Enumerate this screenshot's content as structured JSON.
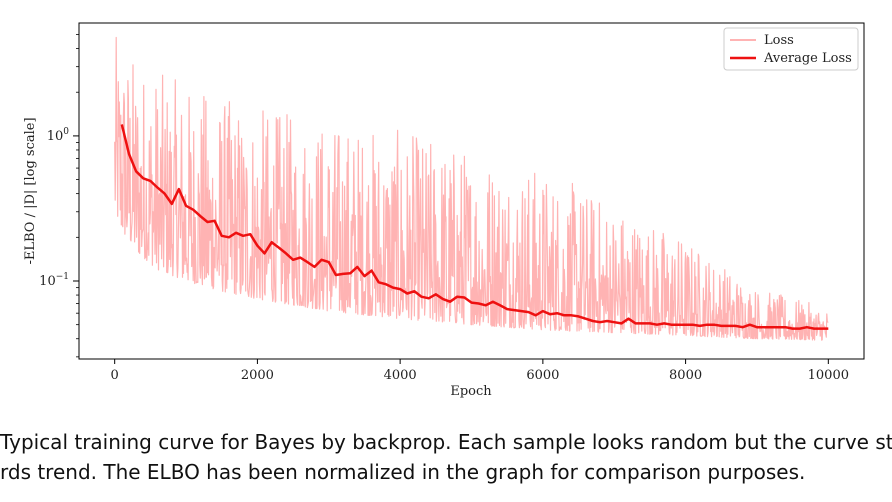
{
  "chart_data": {
    "type": "line",
    "title": "",
    "xlabel": "Epoch",
    "ylabel": "-ELBO / |D| [log scale]",
    "x_ticks": [
      0,
      2000,
      4000,
      6000,
      8000,
      10000
    ],
    "x_tick_labels": [
      "0",
      "2000",
      "4000",
      "6000",
      "8000",
      "10000"
    ],
    "y_scale": "log",
    "y_ticks": [
      0.1,
      1
    ],
    "y_tick_base": "10",
    "y_tick_exponents": [
      "−1",
      "0"
    ],
    "xlim": [
      -500,
      10500
    ],
    "ylim": [
      0.029,
      6.0
    ],
    "grid": false,
    "legend_position": "top-right",
    "colors": {
      "loss": "#ffb3b3",
      "average": "#ee1111"
    },
    "series": [
      {
        "name": "Loss",
        "kind": "noisy-band",
        "x_start": 0,
        "x_end": 10000,
        "envelope_x": [
          0,
          100,
          300,
          600,
          1000,
          1500,
          2000,
          3000,
          4000,
          5000,
          6000,
          7000,
          8000,
          9000,
          10000
        ],
        "envelope_low": [
          0.3,
          0.22,
          0.16,
          0.12,
          0.1,
          0.085,
          0.075,
          0.062,
          0.055,
          0.05,
          0.046,
          0.044,
          0.042,
          0.04,
          0.039
        ],
        "envelope_high": [
          5.0,
          4.5,
          3.5,
          2.8,
          2.3,
          1.9,
          1.6,
          1.3,
          1.1,
          0.85,
          0.6,
          0.35,
          0.2,
          0.09,
          0.065
        ]
      },
      {
        "name": "Average Loss",
        "x": [
          100,
          200,
          300,
          400,
          500,
          600,
          700,
          800,
          900,
          1000,
          1100,
          1200,
          1300,
          1400,
          1500,
          1600,
          1700,
          1800,
          1900,
          2000,
          2100,
          2200,
          2300,
          2400,
          2500,
          2600,
          2700,
          2800,
          2900,
          3000,
          3100,
          3200,
          3300,
          3400,
          3500,
          3600,
          3700,
          3800,
          3900,
          4000,
          4100,
          4200,
          4300,
          4400,
          4500,
          4600,
          4700,
          4800,
          4900,
          5000,
          5100,
          5200,
          5300,
          5400,
          5500,
          5600,
          5700,
          5800,
          5900,
          6000,
          6100,
          6200,
          6300,
          6400,
          6500,
          6600,
          6700,
          6800,
          6900,
          7000,
          7100,
          7200,
          7300,
          7400,
          7500,
          7600,
          7700,
          7800,
          7900,
          8000,
          8100,
          8200,
          8300,
          8400,
          8500,
          8600,
          8700,
          8800,
          8900,
          9000,
          9100,
          9200,
          9300,
          9400,
          9500,
          9600,
          9700,
          9800,
          9900,
          10000
        ],
        "values": [
          1.2,
          0.75,
          0.57,
          0.51,
          0.49,
          0.44,
          0.4,
          0.34,
          0.43,
          0.33,
          0.31,
          0.28,
          0.255,
          0.26,
          0.205,
          0.2,
          0.215,
          0.205,
          0.21,
          0.175,
          0.155,
          0.185,
          0.17,
          0.155,
          0.14,
          0.145,
          0.135,
          0.125,
          0.14,
          0.135,
          0.11,
          0.112,
          0.113,
          0.125,
          0.108,
          0.118,
          0.098,
          0.095,
          0.09,
          0.088,
          0.082,
          0.085,
          0.078,
          0.076,
          0.081,
          0.075,
          0.072,
          0.078,
          0.077,
          0.071,
          0.07,
          0.068,
          0.072,
          0.068,
          0.064,
          0.063,
          0.062,
          0.061,
          0.058,
          0.062,
          0.059,
          0.06,
          0.058,
          0.058,
          0.057,
          0.055,
          0.053,
          0.052,
          0.053,
          0.052,
          0.051,
          0.055,
          0.051,
          0.051,
          0.051,
          0.05,
          0.051,
          0.05,
          0.05,
          0.05,
          0.05,
          0.049,
          0.05,
          0.05,
          0.049,
          0.049,
          0.049,
          0.048,
          0.05,
          0.048,
          0.048,
          0.048,
          0.048,
          0.048,
          0.047,
          0.047,
          0.048,
          0.047,
          0.047,
          0.047
        ]
      }
    ]
  },
  "caption": {
    "line1": "Typical training curve for Bayes by backprop. Each sample looks random but the curve st",
    "line2": "rds trend. The ELBO has been normalized in the graph for comparison purposes."
  }
}
